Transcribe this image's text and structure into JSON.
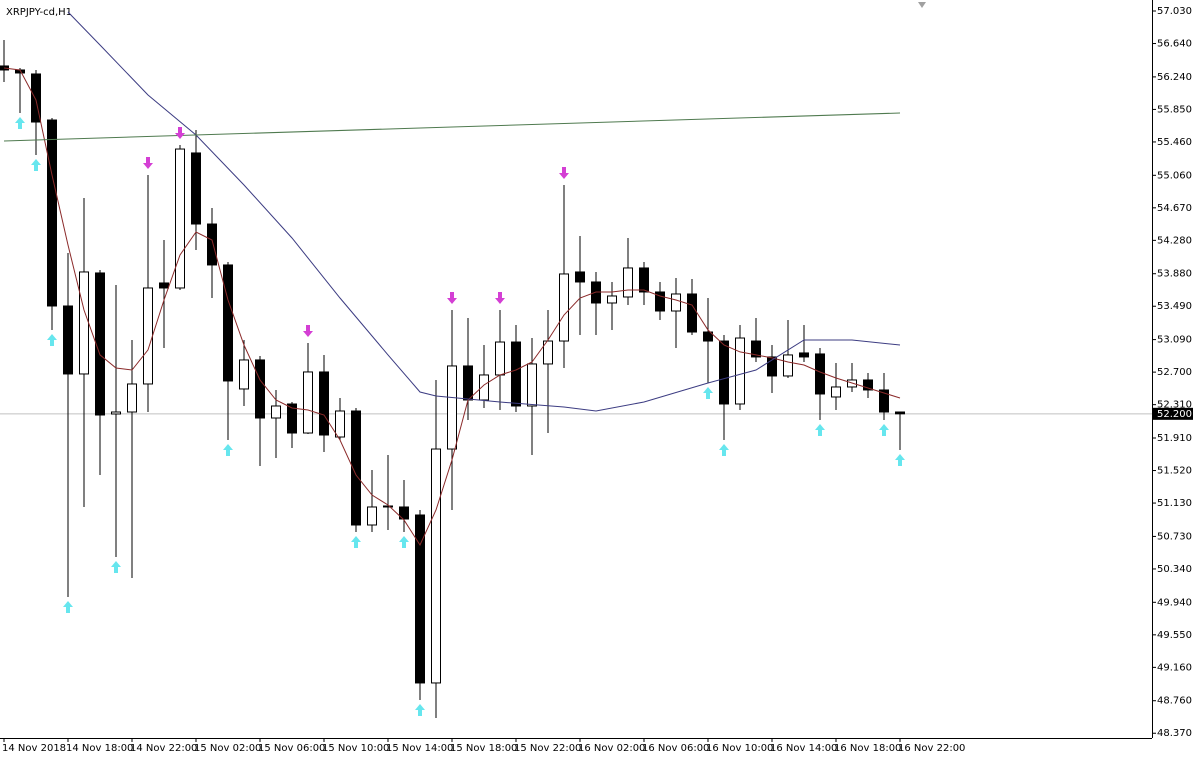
{
  "chart_data": {
    "type": "candlestick",
    "title": "XRPJPY-cd,H1",
    "categories": [
      "14 Nov 2018",
      null,
      null,
      null,
      "14 Nov 18:00",
      null,
      null,
      null,
      "14 Nov 22:00",
      null,
      null,
      null,
      "15 Nov 02:00",
      null,
      null,
      null,
      "15 Nov 06:00",
      null,
      null,
      null,
      "15 Nov 10:00",
      null,
      null,
      null,
      "15 Nov 14:00",
      null,
      null,
      null,
      "15 Nov 18:00",
      null,
      null,
      null,
      "15 Nov 22:00",
      null,
      null,
      null,
      "16 Nov 02:00",
      null,
      null,
      null,
      "16 Nov 06:00",
      null,
      null,
      null,
      "16 Nov 10:00",
      null,
      null,
      null,
      "16 Nov 14:00",
      null,
      null,
      null,
      "16 Nov 18:00",
      null,
      null,
      null,
      "16 Nov 22:00"
    ],
    "open": [
      56.371,
      56.323,
      56.275,
      55.723,
      53.493,
      52.678,
      53.889,
      52.198,
      52.222,
      52.558,
      53.769,
      53.709,
      55.328,
      54.476,
      53.985,
      52.498,
      52.846,
      52.15,
      52.318,
      51.97,
      52.702,
      51.922,
      52.234,
      50.867,
      51.095,
      51.083,
      50.987,
      48.973,
      51.778,
      52.774,
      52.366,
      52.666,
      53.061,
      52.294,
      52.798,
      53.073,
      53.901,
      53.781,
      53.529,
      53.601,
      53.949,
      53.661,
      53.433,
      53.637,
      53.181,
      53.073,
      52.318,
      53.073,
      52.882,
      52.654,
      52.93,
      52.918,
      52.402,
      52.522,
      52.606,
      52.486,
      52.222
    ],
    "high": [
      56.682,
      56.347,
      56.323,
      55.747,
      54.129,
      54.788,
      53.925,
      53.745,
      53.085,
      55.064,
      54.284,
      55.423,
      55.603,
      54.668,
      54.021,
      53.085,
      52.894,
      52.486,
      52.342,
      53.049,
      52.906,
      52.39,
      52.27,
      51.527,
      51.707,
      51.407,
      51.047,
      52.606,
      53.445,
      53.349,
      53.025,
      53.445,
      53.265,
      53.109,
      53.445,
      54.944,
      54.332,
      53.901,
      53.781,
      54.308,
      54.021,
      53.781,
      53.829,
      53.817,
      53.589,
      53.145,
      53.265,
      53.349,
      53.025,
      53.325,
      53.265,
      52.989,
      52.81,
      52.81,
      52.69,
      52.69,
      52.222
    ],
    "low": [
      56.179,
      55.807,
      55.304,
      53.205,
      50.004,
      51.083,
      51.467,
      50.484,
      50.232,
      52.222,
      52.989,
      53.685,
      54.164,
      53.589,
      51.886,
      52.294,
      51.575,
      51.671,
      51.79,
      51.958,
      51.743,
      51.886,
      50.783,
      50.783,
      50.807,
      50.783,
      48.769,
      48.553,
      51.047,
      52.126,
      52.27,
      52.246,
      52.222,
      51.707,
      51.97,
      52.75,
      53.145,
      53.145,
      53.205,
      53.505,
      53.505,
      53.325,
      52.989,
      53.145,
      52.57,
      51.886,
      52.246,
      52.822,
      52.45,
      52.63,
      52.822,
      52.126,
      52.246,
      52.462,
      52.39,
      52.126,
      51.766
    ],
    "close": [
      56.323,
      56.287,
      55.699,
      53.493,
      52.678,
      53.901,
      52.186,
      52.222,
      52.558,
      53.709,
      53.709,
      55.375,
      54.476,
      53.985,
      52.594,
      52.846,
      52.15,
      52.294,
      51.97,
      52.702,
      51.946,
      52.234,
      50.867,
      51.083,
      51.083,
      50.939,
      48.973,
      51.778,
      52.774,
      52.366,
      52.666,
      53.061,
      52.294,
      52.798,
      53.073,
      53.877,
      53.781,
      53.529,
      53.613,
      53.949,
      53.661,
      53.433,
      53.637,
      53.181,
      53.073,
      52.318,
      53.109,
      52.882,
      52.654,
      52.906,
      52.882,
      52.438,
      52.522,
      52.606,
      52.486,
      52.222,
      52.2
    ],
    "up_color": "#000000",
    "down_color": "#000000",
    "lines": [
      {
        "color": "#8b2a2a",
        "values": [
          56.347,
          56.323,
          55.963,
          55.064,
          54.224,
          53.445,
          52.906,
          52.75,
          52.726,
          52.966,
          53.565,
          54.105,
          54.38,
          54.284,
          53.565,
          53.025,
          52.606,
          52.366,
          52.27,
          52.246,
          52.186,
          51.886,
          51.467,
          51.227,
          51.107,
          50.927,
          50.627,
          51.047,
          51.647,
          52.366,
          52.546,
          52.666,
          52.726,
          52.822,
          53.085,
          53.385,
          53.589,
          53.661,
          53.661,
          53.685,
          53.685,
          53.613,
          53.565,
          53.505,
          53.205,
          53.025,
          52.942,
          52.906,
          52.87,
          52.822,
          52.786,
          52.702,
          52.63,
          52.57,
          52.51,
          52.45,
          52.39
        ]
      },
      {
        "color": "#3c3c82",
        "x": [
          4,
          6,
          9,
          12,
          15,
          18,
          21,
          24,
          26,
          27,
          31,
          35,
          37,
          40,
          44,
          47,
          50,
          53,
          56
        ],
        "values": [
          57.018,
          56.622,
          56.023,
          55.543,
          54.944,
          54.308,
          53.589,
          52.906,
          52.462,
          52.414,
          52.342,
          52.282,
          52.234,
          52.342,
          52.57,
          52.726,
          53.085,
          53.085,
          53.025
        ]
      },
      {
        "color": "#4f7a4f",
        "x": [
          0,
          56
        ],
        "values": [
          55.471,
          55.807
        ]
      }
    ],
    "buy_arrows": [
      1,
      2,
      3,
      4,
      7,
      14,
      22,
      25,
      26,
      44,
      45,
      51,
      55,
      56
    ],
    "sell_arrows": [
      9,
      11,
      19,
      28,
      31,
      35
    ],
    "buy_arrow_color": "#66e6ee",
    "sell_arrow_color": "#d43fd4",
    "current_price": {
      "value": 52.2,
      "label": "52.200"
    },
    "xlim": [
      -0.25,
      71.75
    ],
    "ylim": [
      48.313,
      57.162
    ],
    "yticks": [
      {
        "value": 57.03,
        "label": "57.030"
      },
      {
        "value": 56.64,
        "label": "56.640"
      },
      {
        "value": 56.24,
        "label": "56.240"
      },
      {
        "value": 55.85,
        "label": "55.850"
      },
      {
        "value": 55.46,
        "label": "55.460"
      },
      {
        "value": 55.06,
        "label": "55.060"
      },
      {
        "value": 54.67,
        "label": "54.670"
      },
      {
        "value": 54.28,
        "label": "54.280"
      },
      {
        "value": 53.88,
        "label": "53.880"
      },
      {
        "value": 53.49,
        "label": "53.490"
      },
      {
        "value": 53.09,
        "label": "53.090"
      },
      {
        "value": 52.7,
        "label": "52.700"
      },
      {
        "value": 52.31,
        "label": "52.310"
      },
      {
        "value": 51.91,
        "label": "51.910"
      },
      {
        "value": 51.52,
        "label": "51.520"
      },
      {
        "value": 51.13,
        "label": "51.130"
      },
      {
        "value": 50.73,
        "label": "50.730"
      },
      {
        "value": 50.34,
        "label": "50.340"
      },
      {
        "value": 49.94,
        "label": "49.940"
      },
      {
        "value": 49.55,
        "label": "49.550"
      },
      {
        "value": 49.16,
        "label": "49.160"
      },
      {
        "value": 48.76,
        "label": "48.760"
      },
      {
        "value": 48.37,
        "label": "48.370"
      }
    ],
    "grid": false
  }
}
